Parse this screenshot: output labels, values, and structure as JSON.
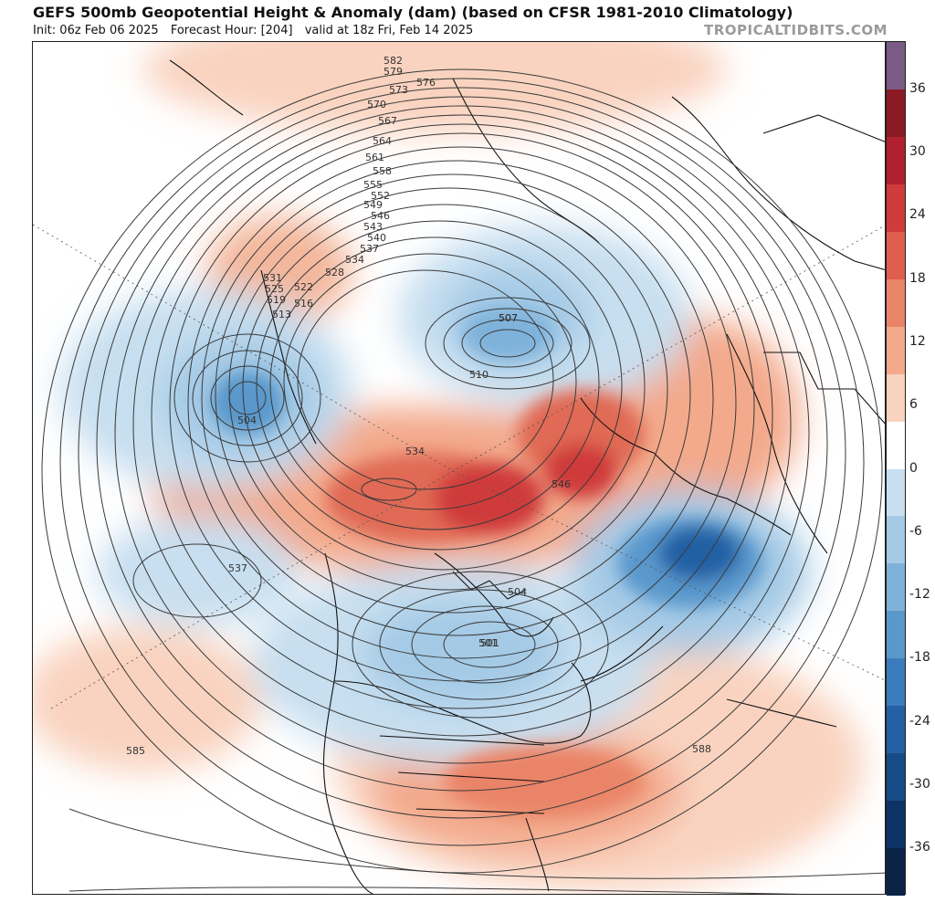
{
  "header": {
    "title": "GEFS 500mb Geopotential Height & Anomaly (dam) (based on CFSR 1981-2010 Climatology)",
    "init": "Init: 06z Feb 06 2025",
    "forecast_hour": "Forecast Hour: [204]",
    "valid": "valid at 18z Fri, Feb 14 2025",
    "brand": "TROPICALTIDBITS.COM"
  },
  "colorbar": {
    "ticks": [
      "36",
      "30",
      "24",
      "18",
      "12",
      "6",
      "0",
      "-6",
      "-12",
      "-18",
      "-24",
      "-30",
      "-36"
    ],
    "colors": [
      "#7b5b86",
      "#8c1a25",
      "#b0202e",
      "#cf3a3a",
      "#df5e4e",
      "#ea8468",
      "#f3a98b",
      "#f9d3bf",
      "#ffffff",
      "#c7dff0",
      "#a4cae6",
      "#7fb2da",
      "#5a98cc",
      "#3a7cbc",
      "#2361a4",
      "#174b86",
      "#0d3366",
      "#0a2347"
    ]
  },
  "map": {
    "contour_labels": [
      "582",
      "579",
      "576",
      "573",
      "570",
      "567",
      "564",
      "561",
      "558",
      "555",
      "552",
      "549",
      "546",
      "543",
      "540",
      "537",
      "534",
      "531",
      "528",
      "525",
      "522",
      "519",
      "516",
      "513",
      "510",
      "507",
      "504",
      "501",
      "585",
      "588"
    ],
    "anomaly_lows": [
      {
        "label": "507"
      },
      {
        "label": "504"
      },
      {
        "label": "501"
      },
      {
        "label": "537"
      }
    ],
    "anomaly_highs": [
      {
        "label": "534"
      },
      {
        "label": "546"
      }
    ]
  }
}
